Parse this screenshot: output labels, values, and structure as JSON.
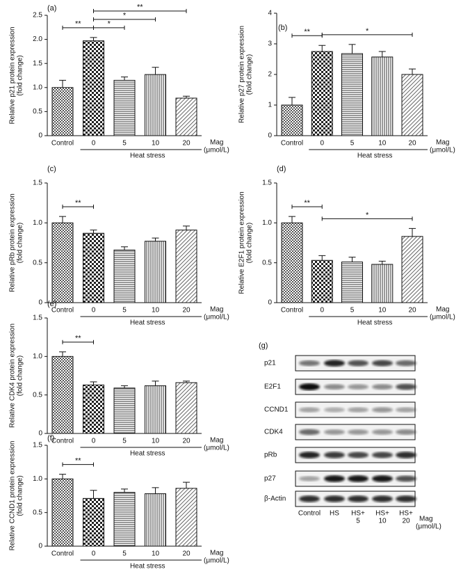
{
  "chart_data": [
    {
      "type": "bar",
      "panel": "(a)",
      "ylabel": "Relative p21 protein expression",
      "ylabel2": "(fold change)",
      "categories": [
        "Control",
        "0",
        "5",
        "10",
        "20"
      ],
      "values": [
        1.0,
        1.97,
        1.15,
        1.27,
        0.78
      ],
      "errors": [
        0.15,
        0.07,
        0.07,
        0.15,
        0.04
      ],
      "ylim": [
        0,
        2.5
      ],
      "yticks": [
        0,
        0.5,
        {
          "value": 1,
          "label": "1.0"
        },
        1.5,
        {
          "value": 2,
          "label": "2.0"
        },
        2.5
      ],
      "group_label": "Heat stress",
      "unit_label": "Mag",
      "unit_label2": "(μmol/L)",
      "significance": [
        {
          "from": "Control",
          "to": "0",
          "label": "**"
        },
        {
          "from": "0",
          "to": "5",
          "label": "*"
        },
        {
          "from": "0",
          "to": "10",
          "label": "*"
        },
        {
          "from": "0",
          "to": "20",
          "label": "**"
        }
      ]
    },
    {
      "type": "bar",
      "panel": "(b)",
      "ylabel": "Relative p27 protein expression",
      "ylabel2": "(fold change)",
      "categories": [
        "Control",
        "0",
        "5",
        "10",
        "20"
      ],
      "values": [
        1.0,
        2.75,
        2.68,
        2.57,
        2.0
      ],
      "errors": [
        0.25,
        0.2,
        0.3,
        0.18,
        0.18
      ],
      "ylim": [
        0,
        4
      ],
      "yticks": [
        0,
        1,
        2,
        3,
        4
      ],
      "group_label": "Heat stress",
      "unit_label": "Mag",
      "unit_label2": "(μmol/L)",
      "significance": [
        {
          "from": "Control",
          "to": "0",
          "label": "**"
        },
        {
          "from": "0",
          "to": "20",
          "label": "*"
        }
      ]
    },
    {
      "type": "bar",
      "panel": "(c)",
      "ylabel": "Relative pRb protein expression",
      "ylabel2": "(fold change)",
      "categories": [
        "Control",
        "0",
        "5",
        "10",
        "20"
      ],
      "values": [
        1.0,
        0.87,
        0.66,
        0.77,
        0.91
      ],
      "errors": [
        0.08,
        0.04,
        0.04,
        0.04,
        0.05
      ],
      "ylim": [
        0,
        1.5
      ],
      "yticks": [
        0,
        0.5,
        {
          "value": 1,
          "label": "1.0"
        },
        1.5
      ],
      "group_label": "Heat stress",
      "unit_label": "Mag",
      "unit_label2": "(μmol/L)",
      "significance": [
        {
          "from": "Control",
          "to": "0",
          "label": "**"
        }
      ]
    },
    {
      "type": "bar",
      "panel": "(d)",
      "ylabel": "Relative E2F1 protein expression",
      "ylabel2": "(fold change)",
      "categories": [
        "Control",
        "0",
        "5",
        "10",
        "20"
      ],
      "values": [
        1.0,
        0.53,
        0.51,
        0.48,
        0.83
      ],
      "errors": [
        0.08,
        0.06,
        0.06,
        0.04,
        0.1
      ],
      "ylim": [
        0,
        1.5
      ],
      "yticks": [
        0,
        0.5,
        {
          "value": 1,
          "label": "1.0"
        },
        1.5
      ],
      "group_label": "Heat stress",
      "unit_label": "Mag",
      "unit_label2": "(μmol/L)",
      "significance": [
        {
          "from": "Control",
          "to": "0",
          "label": "**"
        },
        {
          "from": "0",
          "to": "20",
          "label": "*"
        }
      ]
    },
    {
      "type": "bar",
      "panel": "(e)",
      "ylabel": "Relative CDK4 protein expression",
      "ylabel2": "(fold change)",
      "categories": [
        "Control",
        "0",
        "5",
        "10",
        "20"
      ],
      "values": [
        1.0,
        0.63,
        0.59,
        0.62,
        0.66
      ],
      "errors": [
        0.06,
        0.04,
        0.03,
        0.06,
        0.02
      ],
      "ylim": [
        0,
        1.5
      ],
      "yticks": [
        0,
        0.5,
        {
          "value": 1,
          "label": "1.0"
        },
        1.5
      ],
      "group_label": "Heat stress",
      "unit_label": "Mag",
      "unit_label2": "(μmol/L)",
      "significance": [
        {
          "from": "Control",
          "to": "0",
          "label": "**"
        }
      ]
    },
    {
      "type": "bar",
      "panel": "(f)",
      "ylabel": "Relative CCND1 protein expression",
      "ylabel2": "(fold change)",
      "categories": [
        "Control",
        "0",
        "5",
        "10",
        "20"
      ],
      "values": [
        1.0,
        0.71,
        0.8,
        0.78,
        0.86
      ],
      "errors": [
        0.07,
        0.12,
        0.05,
        0.09,
        0.09
      ],
      "ylim": [
        0,
        1.5
      ],
      "yticks": [
        0,
        0.5,
        {
          "value": 1,
          "label": "1.0"
        },
        1.5
      ],
      "group_label": "Heat stress",
      "unit_label": "Mag",
      "unit_label2": "(μmol/L)",
      "significance": [
        {
          "from": "Control",
          "to": "0",
          "label": "**"
        }
      ]
    }
  ],
  "blot": {
    "panel": "(g)",
    "proteins": [
      "p21",
      "E2F1",
      "CCND1",
      "CDK4",
      "pRb",
      "p27",
      "β-Actin"
    ],
    "lanes": [
      [
        "Control"
      ],
      [
        "HS"
      ],
      [
        "HS+",
        "5"
      ],
      [
        "HS+",
        "10"
      ],
      [
        "HS+",
        "20"
      ]
    ],
    "unit_label": "Mag",
    "unit_label2": "(μmol/L)"
  }
}
